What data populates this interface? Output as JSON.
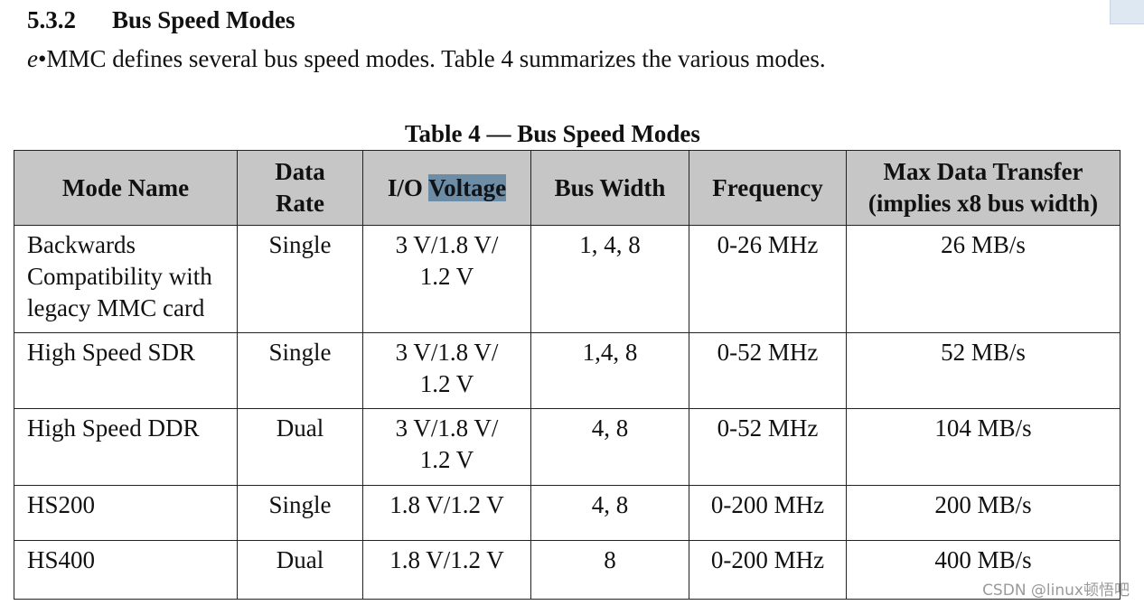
{
  "section": {
    "number": "5.3.2",
    "title": "Bus Speed Modes"
  },
  "intro": {
    "italic_prefix": "e",
    "text": "•MMC defines several bus speed modes. Table 4 summarizes the various modes."
  },
  "table": {
    "caption": "Table 4 — Bus Speed Modes",
    "headers": {
      "mode_name": "Mode Name",
      "data_rate_1": "Data",
      "data_rate_2": "Rate",
      "io_voltage_prefix": "I/O ",
      "io_voltage_highlighted": "Voltage",
      "bus_width": "Bus Width",
      "frequency": "Frequency",
      "max_transfer_1": "Max Data Transfer",
      "max_transfer_2": "(implies x8 bus width)"
    },
    "rows": [
      {
        "mode_lines": [
          "Backwards",
          "Compatibility with",
          "legacy MMC card"
        ],
        "data_rate": "Single",
        "voltage_lines": [
          "3 V/1.8 V/",
          "1.2 V"
        ],
        "bus_width": "1, 4, 8",
        "frequency": "0-26 MHz",
        "max_transfer": "26 MB/s"
      },
      {
        "mode_lines": [
          "High Speed SDR"
        ],
        "data_rate": "Single",
        "voltage_lines": [
          "3 V/1.8 V/",
          "1.2 V"
        ],
        "bus_width": "1,4, 8",
        "frequency": "0-52 MHz",
        "max_transfer": "52 MB/s"
      },
      {
        "mode_lines": [
          "High Speed DDR"
        ],
        "data_rate": "Dual",
        "voltage_lines": [
          "3 V/1.8 V/",
          "1.2 V"
        ],
        "bus_width": "4, 8",
        "frequency": "0-52 MHz",
        "max_transfer": "104 MB/s"
      },
      {
        "mode_lines": [
          "HS200"
        ],
        "data_rate": "Single",
        "voltage_lines": [
          "1.8 V/1.2 V"
        ],
        "bus_width": "4, 8",
        "frequency": "0-200 MHz",
        "max_transfer": "200 MB/s"
      },
      {
        "mode_lines": [
          "HS400"
        ],
        "data_rate": "Dual",
        "voltage_lines": [
          "1.8 V/1.2 V"
        ],
        "bus_width": "8",
        "frequency": "0-200 MHz",
        "max_transfer": "400 MB/s"
      }
    ]
  },
  "watermark": "CSDN @linux顿悟吧",
  "colors": {
    "header_bg": "#c6c6c6",
    "selection_highlight": "#6d8da7"
  }
}
